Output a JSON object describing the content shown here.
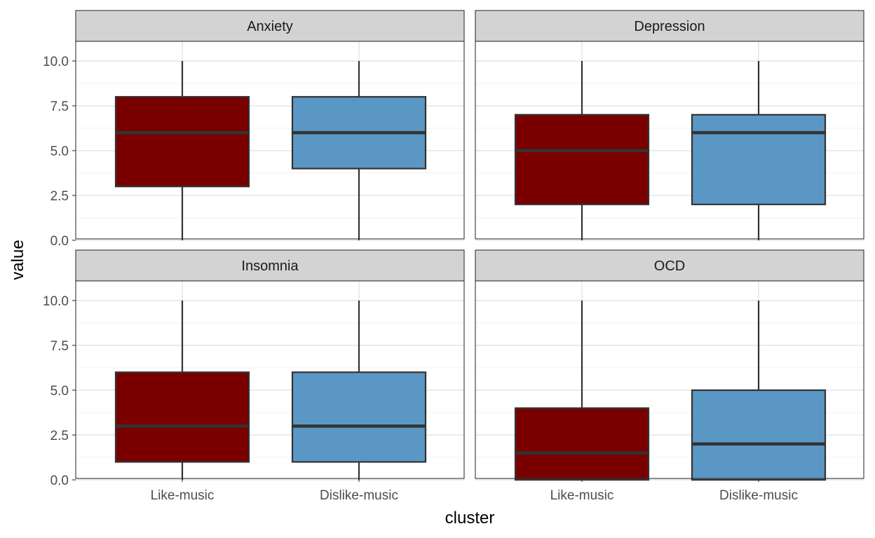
{
  "chart_data": {
    "type": "boxplot",
    "facet_layout": "2x2 grid",
    "xlabel": "cluster",
    "ylabel": "value",
    "ylim": [
      0,
      10
    ],
    "y_ticks": [
      "0.0",
      "2.5",
      "5.0",
      "7.5",
      "10.0"
    ],
    "categories": [
      "Like-music",
      "Dislike-music"
    ],
    "colors": {
      "Like-music": "#7a0000",
      "Dislike-music": "#5b97c4"
    },
    "grid": true,
    "legend": "none",
    "panels": [
      {
        "title": "Anxiety",
        "boxes": [
          {
            "category": "Like-music",
            "min": 0,
            "q1": 3,
            "median": 6,
            "q3": 8,
            "max": 10
          },
          {
            "category": "Dislike-music",
            "min": 0,
            "q1": 4,
            "median": 6,
            "q3": 8,
            "max": 10
          }
        ]
      },
      {
        "title": "Depression",
        "boxes": [
          {
            "category": "Like-music",
            "min": 0,
            "q1": 2,
            "median": 5,
            "q3": 7,
            "max": 10
          },
          {
            "category": "Dislike-music",
            "min": 0,
            "q1": 2,
            "median": 6,
            "q3": 7,
            "max": 10
          }
        ]
      },
      {
        "title": "Insomnia",
        "boxes": [
          {
            "category": "Like-music",
            "min": 0,
            "q1": 1,
            "median": 3,
            "q3": 6,
            "max": 10
          },
          {
            "category": "Dislike-music",
            "min": 0,
            "q1": 1,
            "median": 3,
            "q3": 6,
            "max": 10
          }
        ]
      },
      {
        "title": "OCD",
        "boxes": [
          {
            "category": "Like-music",
            "min": 0,
            "q1": 0,
            "median": 1.5,
            "q3": 4,
            "max": 10
          },
          {
            "category": "Dislike-music",
            "min": 0,
            "q1": 0,
            "median": 2,
            "q3": 5,
            "max": 10
          }
        ]
      }
    ]
  }
}
